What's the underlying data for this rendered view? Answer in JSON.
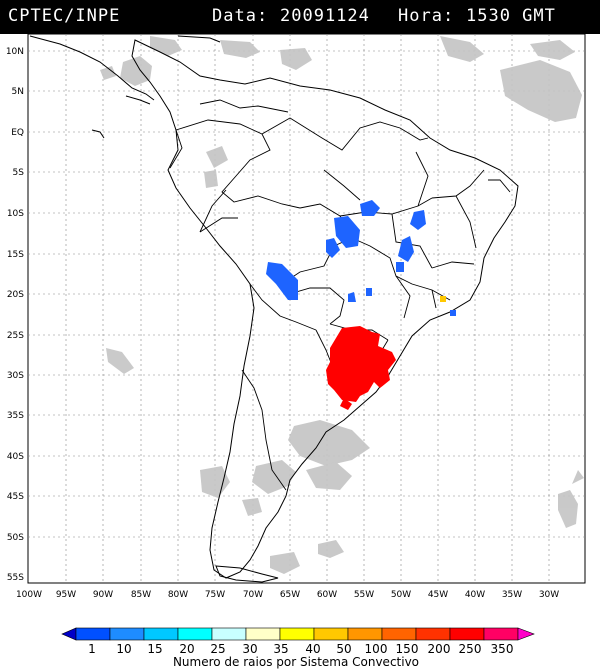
{
  "header": {
    "source": "CPTEC/INPE",
    "data_label": "Data:",
    "date": "20091124",
    "hour_label": "Hora:",
    "time": "1530 GMT"
  },
  "map": {
    "lat_labels": [
      "10N",
      "5N",
      "EQ",
      "5S",
      "10S",
      "15S",
      "20S",
      "25S",
      "30S",
      "35S",
      "40S",
      "45S",
      "50S",
      "55S"
    ],
    "lon_labels": [
      "100W",
      "95W",
      "90W",
      "85W",
      "80W",
      "75W",
      "70W",
      "65W",
      "60W",
      "55W",
      "50W",
      "45W",
      "40W",
      "35W",
      "30W"
    ]
  },
  "legend": {
    "title": "Numero de raios por Sistema Convectivo",
    "labels": [
      "1",
      "10",
      "15",
      "20",
      "25",
      "30",
      "35",
      "40",
      "50",
      "100",
      "150",
      "200",
      "250",
      "350"
    ],
    "colors": [
      "#0000c8",
      "#0050ff",
      "#1e8cff",
      "#00c8ff",
      "#00ffff",
      "#c8ffff",
      "#ffffc8",
      "#ffff00",
      "#ffc800",
      "#ff9600",
      "#ff6400",
      "#ff3200",
      "#ff0000",
      "#ff0064",
      "#ff00c8"
    ],
    "lightning_color": "#ff0000",
    "storm_color": "#1e64ff",
    "cloud_color": "#c0c0c0"
  }
}
